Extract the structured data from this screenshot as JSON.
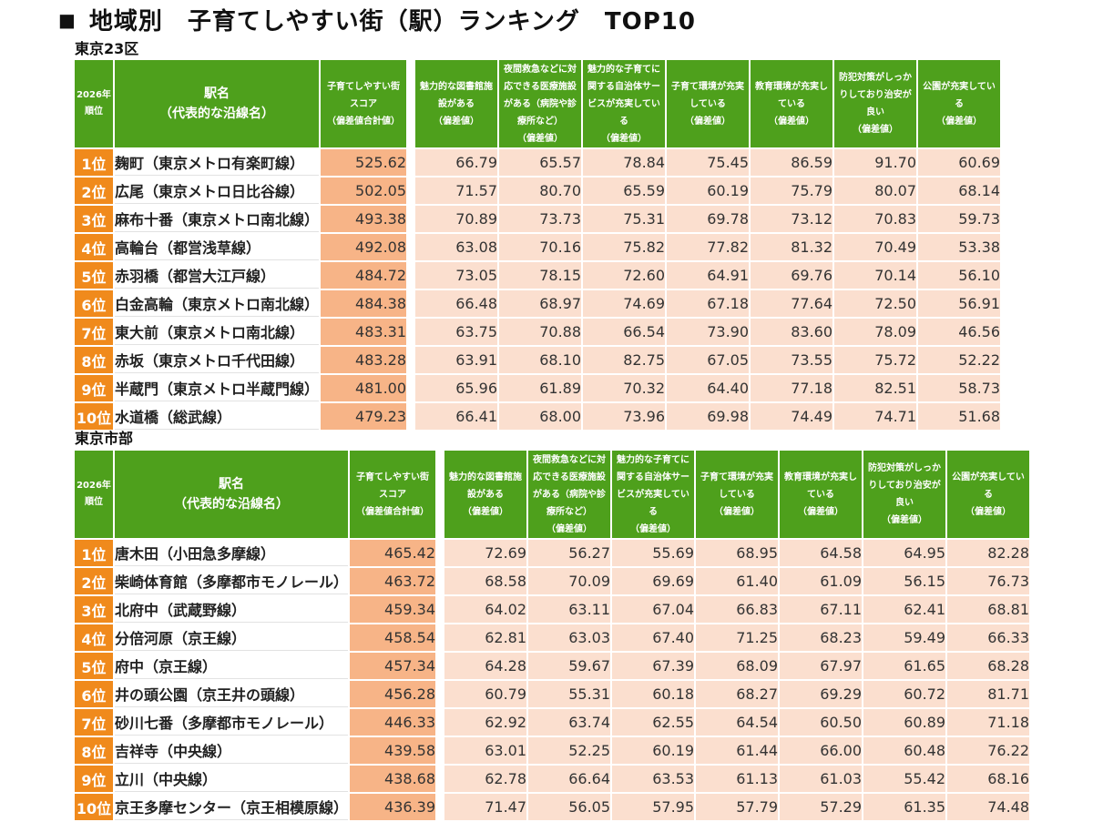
{
  "title": "地域別　子育てしやすい街（駅）ランキング　TOP10",
  "title_marker": "■",
  "headers": {
    "rank": "2026年\n順位",
    "station": "駅名\n（代表的な沿線名）",
    "total": "子育てしやすい街\nスコア\n（偏差値合計値）",
    "c1": "魅力的な図書館施\n設がある\n（偏差値）",
    "c2": "夜間救急などに対\n応できる医療施設\nがある（病院や診\n療所など）\n（偏差値）",
    "c3": "魅力的な子育てに\n関する自治体サー\nビスが充実してい\nる\n（偏差値）",
    "c4": "子育て環境が充実\nしている\n（偏差値）",
    "c5": "教育環境が充実し\nている\n（偏差値）",
    "c6": "防犯対策がしっか\nりしており治安が\n良い\n（偏差値）",
    "c7": "公園が充実してい\nる\n（偏差値）"
  },
  "sections": [
    {
      "label": "東京23区",
      "rows": [
        {
          "rank": "1位",
          "station": "麹町（東京メトロ有楽町線）",
          "total": "525.62",
          "vals": [
            "66.79",
            "65.57",
            "78.84",
            "75.45",
            "86.59",
            "91.70",
            "60.69"
          ]
        },
        {
          "rank": "2位",
          "station": "広尾（東京メトロ日比谷線）",
          "total": "502.05",
          "vals": [
            "71.57",
            "80.70",
            "65.59",
            "60.19",
            "75.79",
            "80.07",
            "68.14"
          ]
        },
        {
          "rank": "3位",
          "station": "麻布十番（東京メトロ南北線）",
          "total": "493.38",
          "vals": [
            "70.89",
            "73.73",
            "75.31",
            "69.78",
            "73.12",
            "70.83",
            "59.73"
          ]
        },
        {
          "rank": "4位",
          "station": "高輪台（都営浅草線）",
          "total": "492.08",
          "vals": [
            "63.08",
            "70.16",
            "75.82",
            "77.82",
            "81.32",
            "70.49",
            "53.38"
          ]
        },
        {
          "rank": "5位",
          "station": "赤羽橋（都営大江戸線）",
          "total": "484.72",
          "vals": [
            "73.05",
            "78.15",
            "72.60",
            "64.91",
            "69.76",
            "70.14",
            "56.10"
          ]
        },
        {
          "rank": "6位",
          "station": "白金高輪（東京メトロ南北線）",
          "total": "484.38",
          "vals": [
            "66.48",
            "68.97",
            "74.69",
            "67.18",
            "77.64",
            "72.50",
            "56.91"
          ]
        },
        {
          "rank": "7位",
          "station": "東大前（東京メトロ南北線）",
          "total": "483.31",
          "vals": [
            "63.75",
            "70.88",
            "66.54",
            "73.90",
            "83.60",
            "78.09",
            "46.56"
          ]
        },
        {
          "rank": "8位",
          "station": "赤坂（東京メトロ千代田線）",
          "total": "483.28",
          "vals": [
            "63.91",
            "68.10",
            "82.75",
            "67.05",
            "73.55",
            "75.72",
            "52.22"
          ]
        },
        {
          "rank": "9位",
          "station": "半蔵門（東京メトロ半蔵門線）",
          "total": "481.00",
          "vals": [
            "65.96",
            "61.89",
            "70.32",
            "64.40",
            "77.18",
            "82.51",
            "58.73"
          ]
        },
        {
          "rank": "10位",
          "station": "水道橋（総武線）",
          "total": "479.23",
          "vals": [
            "66.41",
            "68.00",
            "73.96",
            "69.98",
            "74.49",
            "74.71",
            "51.68"
          ]
        }
      ]
    },
    {
      "label": "東京市部",
      "rows": [
        {
          "rank": "1位",
          "station": "唐木田（小田急多摩線）",
          "total": "465.42",
          "vals": [
            "72.69",
            "56.27",
            "55.69",
            "68.95",
            "64.58",
            "64.95",
            "82.28"
          ]
        },
        {
          "rank": "2位",
          "station": "柴崎体育館（多摩都市モノレール）",
          "total": "463.72",
          "vals": [
            "68.58",
            "70.09",
            "69.69",
            "61.40",
            "61.09",
            "56.15",
            "76.73"
          ]
        },
        {
          "rank": "3位",
          "station": "北府中（武蔵野線）",
          "total": "459.34",
          "vals": [
            "64.02",
            "63.11",
            "67.04",
            "66.83",
            "67.11",
            "62.41",
            "68.81"
          ]
        },
        {
          "rank": "4位",
          "station": "分倍河原（京王線）",
          "total": "458.54",
          "vals": [
            "62.81",
            "63.03",
            "67.40",
            "71.25",
            "68.23",
            "59.49",
            "66.33"
          ]
        },
        {
          "rank": "5位",
          "station": "府中（京王線）",
          "total": "457.34",
          "vals": [
            "64.28",
            "59.67",
            "67.39",
            "68.09",
            "67.97",
            "61.65",
            "68.28"
          ]
        },
        {
          "rank": "6位",
          "station": "井の頭公園（京王井の頭線）",
          "total": "456.28",
          "vals": [
            "60.79",
            "55.31",
            "60.18",
            "68.27",
            "69.29",
            "60.72",
            "81.71"
          ]
        },
        {
          "rank": "7位",
          "station": "砂川七番（多摩都市モノレール）",
          "total": "446.33",
          "vals": [
            "62.92",
            "63.74",
            "62.55",
            "64.54",
            "60.50",
            "60.89",
            "71.18"
          ]
        },
        {
          "rank": "8位",
          "station": "吉祥寺（中央線）",
          "total": "439.58",
          "vals": [
            "63.01",
            "52.25",
            "60.19",
            "61.44",
            "66.00",
            "60.48",
            "76.22"
          ]
        },
        {
          "rank": "9位",
          "station": "立川（中央線）",
          "total": "438.68",
          "vals": [
            "62.78",
            "66.64",
            "63.53",
            "61.13",
            "61.03",
            "55.42",
            "68.16"
          ]
        },
        {
          "rank": "10位",
          "station": "京王多摩センター（京王相模原線）",
          "total": "436.39",
          "vals": [
            "71.47",
            "56.05",
            "57.95",
            "57.79",
            "57.29",
            "61.35",
            "74.48"
          ]
        }
      ]
    }
  ]
}
